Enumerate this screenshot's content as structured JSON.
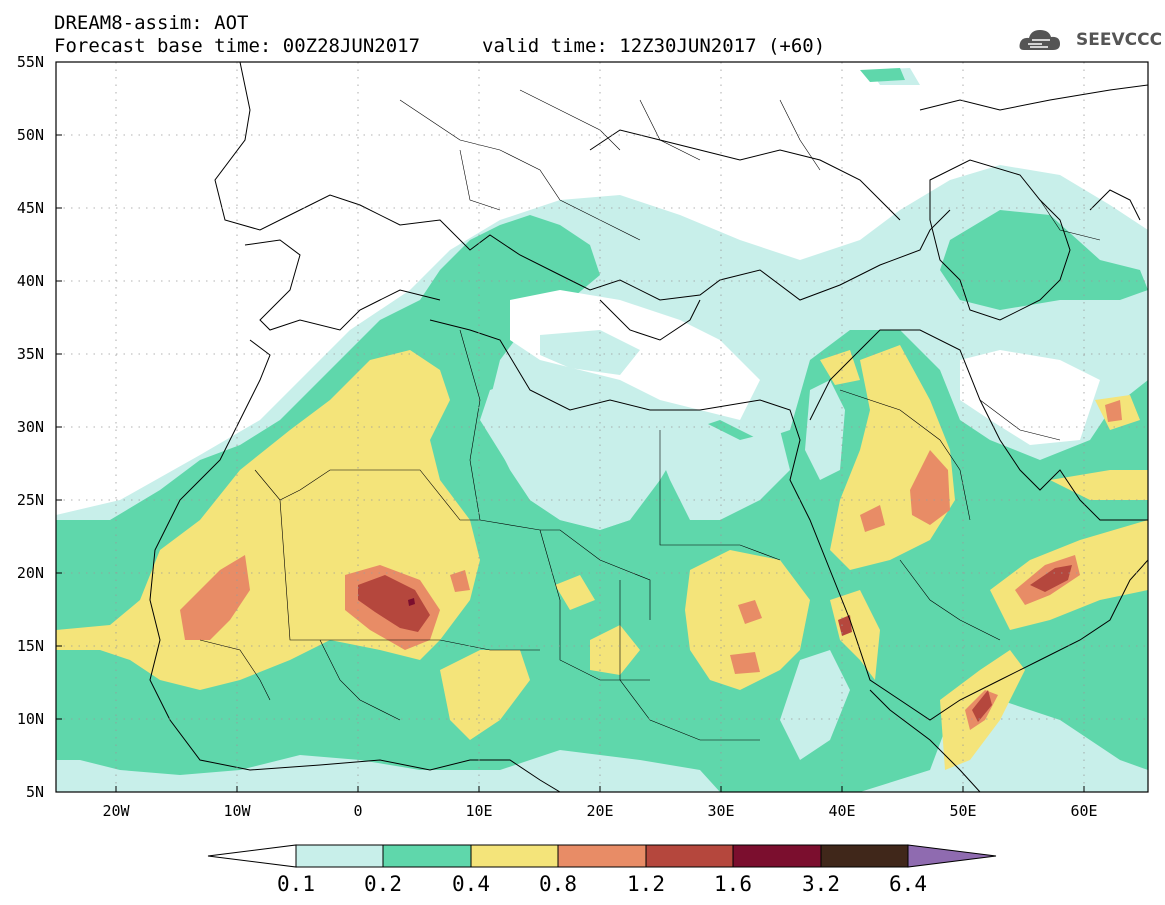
{
  "header": {
    "line1": "DREAM8-assim: AOT",
    "line2": "Forecast base time: 00Z28JUN2017",
    "line3": "valid time: 12Z30JUN2017 (+60)",
    "logo_text": "SEEVCCC"
  },
  "axes": {
    "lat_labels": [
      "55N",
      "50N",
      "45N",
      "40N",
      "35N",
      "30N",
      "25N",
      "20N",
      "15N",
      "10N",
      "5N"
    ],
    "lon_labels": [
      "20W",
      "10W",
      "0",
      "10E",
      "20E",
      "30E",
      "40E",
      "50E",
      "60E"
    ],
    "lat_range": [
      5,
      55
    ],
    "lon_range": [
      -25,
      65
    ]
  },
  "colorbar": {
    "labels": [
      "0.1",
      "0.2",
      "0.4",
      "0.8",
      "1.2",
      "1.6",
      "3.2",
      "6.4"
    ],
    "colors": [
      "#c8efea",
      "#5fd7ab",
      "#f4e47a",
      "#e88c66",
      "#b5473d",
      "#7b0e2e",
      "#40271a",
      "#8f6bb0"
    ],
    "open_low_color": "#ffffff"
  },
  "map_colors": {
    "land_lines": "#000000",
    "grid": "#9a9a9a"
  }
}
